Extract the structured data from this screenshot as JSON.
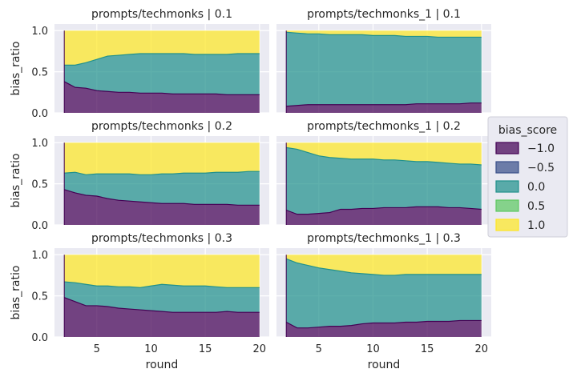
{
  "chart_data": {
    "type": "area",
    "stacked": true,
    "normalized": true,
    "xlabel": "round",
    "ylabel": "bias_ratio",
    "xlim": [
      1.1,
      20.9
    ],
    "ylim": [
      0,
      1.08
    ],
    "xticks": [
      5,
      10,
      15,
      20
    ],
    "yticks": [
      0.0,
      0.5,
      1.0
    ],
    "grid": true,
    "legend": {
      "title": "bias_score",
      "placement": "right",
      "entries": [
        {
          "label": "−1.0",
          "color": "#440154"
        },
        {
          "label": "−0.5",
          "color": "#3b528b"
        },
        {
          "label": "0.0",
          "color": "#21918c"
        },
        {
          "label": "0.5",
          "color": "#5ec962"
        },
        {
          "label": "1.0",
          "color": "#fde725"
        }
      ]
    },
    "x": [
      2,
      3,
      4,
      5,
      6,
      7,
      8,
      9,
      10,
      11,
      12,
      13,
      14,
      15,
      16,
      17,
      18,
      19,
      20
    ],
    "panels": [
      {
        "title": "prompts/techmonks | 0.1",
        "cum_neg1": [
          0.38,
          0.31,
          0.3,
          0.27,
          0.26,
          0.25,
          0.25,
          0.24,
          0.24,
          0.24,
          0.23,
          0.23,
          0.23,
          0.23,
          0.23,
          0.22,
          0.22,
          0.22,
          0.22
        ],
        "cum_0": [
          0.58,
          0.58,
          0.61,
          0.65,
          0.69,
          0.7,
          0.71,
          0.72,
          0.72,
          0.72,
          0.72,
          0.72,
          0.71,
          0.71,
          0.71,
          0.71,
          0.72,
          0.72,
          0.72
        ]
      },
      {
        "title": "prompts/techmonks_1 | 0.1",
        "cum_neg1": [
          0.08,
          0.09,
          0.1,
          0.1,
          0.1,
          0.1,
          0.1,
          0.1,
          0.1,
          0.1,
          0.1,
          0.1,
          0.11,
          0.11,
          0.11,
          0.11,
          0.11,
          0.12,
          0.12
        ],
        "cum_0": [
          0.98,
          0.97,
          0.96,
          0.96,
          0.95,
          0.95,
          0.95,
          0.95,
          0.94,
          0.94,
          0.94,
          0.93,
          0.93,
          0.93,
          0.92,
          0.92,
          0.92,
          0.92,
          0.92
        ]
      },
      {
        "title": "prompts/techmonks | 0.2",
        "cum_neg1": [
          0.43,
          0.39,
          0.36,
          0.35,
          0.32,
          0.3,
          0.29,
          0.28,
          0.27,
          0.26,
          0.26,
          0.26,
          0.25,
          0.25,
          0.25,
          0.25,
          0.24,
          0.24,
          0.24
        ],
        "cum_0": [
          0.63,
          0.64,
          0.61,
          0.62,
          0.62,
          0.62,
          0.62,
          0.61,
          0.61,
          0.62,
          0.62,
          0.63,
          0.63,
          0.63,
          0.64,
          0.64,
          0.64,
          0.65,
          0.65
        ]
      },
      {
        "title": "prompts/techmonks_1 | 0.2",
        "cum_neg1": [
          0.18,
          0.13,
          0.13,
          0.14,
          0.15,
          0.19,
          0.19,
          0.2,
          0.2,
          0.21,
          0.21,
          0.21,
          0.22,
          0.22,
          0.22,
          0.21,
          0.21,
          0.2,
          0.19
        ],
        "cum_0": [
          0.94,
          0.92,
          0.88,
          0.84,
          0.82,
          0.81,
          0.8,
          0.8,
          0.8,
          0.79,
          0.79,
          0.78,
          0.77,
          0.77,
          0.76,
          0.75,
          0.74,
          0.74,
          0.73
        ]
      },
      {
        "title": "prompts/techmonks | 0.3",
        "cum_neg1": [
          0.48,
          0.43,
          0.38,
          0.38,
          0.37,
          0.35,
          0.34,
          0.33,
          0.32,
          0.31,
          0.3,
          0.3,
          0.3,
          0.3,
          0.3,
          0.31,
          0.3,
          0.3,
          0.3
        ],
        "cum_0": [
          0.67,
          0.66,
          0.64,
          0.62,
          0.62,
          0.61,
          0.61,
          0.6,
          0.62,
          0.64,
          0.63,
          0.62,
          0.62,
          0.62,
          0.61,
          0.6,
          0.6,
          0.6,
          0.6
        ]
      },
      {
        "title": "prompts/techmonks_1 | 0.3",
        "cum_neg1": [
          0.18,
          0.11,
          0.11,
          0.12,
          0.13,
          0.13,
          0.14,
          0.16,
          0.17,
          0.17,
          0.17,
          0.18,
          0.18,
          0.19,
          0.19,
          0.19,
          0.2,
          0.2,
          0.2
        ],
        "cum_0": [
          0.95,
          0.9,
          0.87,
          0.84,
          0.82,
          0.8,
          0.78,
          0.77,
          0.76,
          0.75,
          0.75,
          0.76,
          0.76,
          0.76,
          0.76,
          0.76,
          0.76,
          0.76,
          0.76
        ]
      }
    ]
  }
}
